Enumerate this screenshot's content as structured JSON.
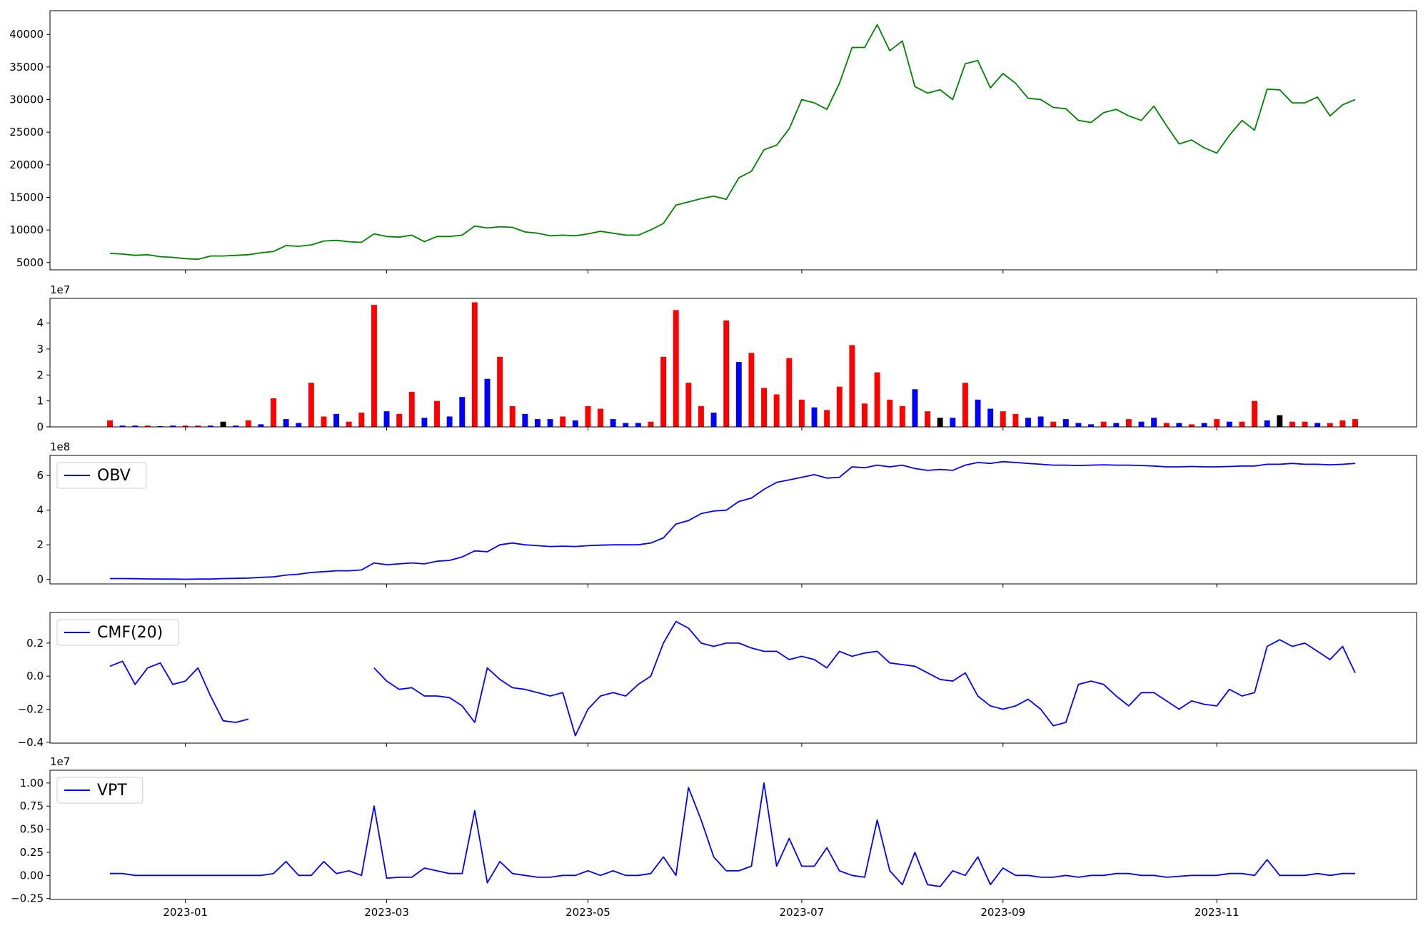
{
  "chart_data": [
    {
      "type": "line",
      "color": "#008000",
      "values": [
        6400,
        6300,
        6100,
        6200,
        5900,
        5800,
        5600,
        5500,
        6000,
        6000,
        6100,
        6200,
        6500,
        6700,
        7600,
        7500,
        7700,
        8300,
        8400,
        8200,
        8100,
        9400,
        9000,
        8900,
        9200,
        8200,
        9000,
        9000,
        9200,
        10600,
        10300,
        10500,
        10400,
        9700,
        9500,
        9100,
        9200,
        9100,
        9400,
        9800,
        9500,
        9200,
        9200,
        10000,
        11000,
        13800,
        14300,
        14800,
        15200,
        14700,
        18000,
        19000,
        22300,
        23000,
        25500,
        30000,
        29500,
        28500,
        32500,
        38000,
        38000,
        41500,
        37500,
        39000,
        32000,
        31000,
        31500,
        30000,
        35500,
        36000,
        31800,
        34000,
        32500,
        30200,
        30000,
        28800,
        28600,
        26800,
        26500,
        28000,
        28500,
        27500,
        26800,
        29000,
        26000,
        23200,
        23800,
        22600,
        21800,
        24500,
        26800,
        25300,
        31600,
        31500,
        29500,
        29500,
        30400,
        27500,
        29200,
        30000
      ],
      "ylim": [
        3880,
        43640
      ],
      "yticks": [
        5000,
        10000,
        15000,
        20000,
        25000,
        30000,
        35000,
        40000
      ]
    },
    {
      "type": "bar",
      "offset_label": "1e7",
      "values": [
        0.25,
        0.05,
        0.05,
        0.05,
        0.03,
        0.05,
        0.05,
        0.05,
        0.05,
        0.2,
        0.05,
        0.25,
        0.1,
        1.1,
        0.3,
        0.15,
        1.7,
        0.4,
        0.5,
        0.2,
        0.55,
        4.7,
        0.6,
        0.5,
        1.35,
        0.35,
        1.0,
        0.4,
        1.15,
        4.8,
        1.85,
        2.7,
        0.8,
        0.5,
        0.3,
        0.3,
        0.4,
        0.25,
        0.8,
        0.7,
        0.3,
        0.15,
        0.15,
        0.2,
        2.7,
        4.5,
        1.7,
        0.8,
        0.55,
        4.1,
        2.5,
        2.85,
        1.5,
        1.25,
        2.65,
        1.05,
        0.75,
        0.65,
        1.55,
        3.15,
        0.9,
        2.1,
        1.05,
        0.8,
        1.45,
        0.6,
        0.35,
        0.35,
        1.7,
        1.05,
        0.7,
        0.6,
        0.5,
        0.35,
        0.4,
        0.2,
        0.3,
        0.15,
        0.1,
        0.2,
        0.15,
        0.3,
        0.2,
        0.35,
        0.15,
        0.15,
        0.1,
        0.15,
        0.3,
        0.2,
        0.2,
        1.0,
        0.25,
        0.45,
        0.2,
        0.2,
        0.15,
        0.15,
        0.25,
        0.3
      ],
      "colors": [
        "red",
        "blue",
        "blue",
        "red",
        "blue",
        "blue",
        "red",
        "red",
        "blue",
        "black",
        "blue",
        "red",
        "blue",
        "red",
        "blue",
        "blue",
        "red",
        "red",
        "blue",
        "red",
        "red",
        "red",
        "blue",
        "red",
        "red",
        "blue",
        "red",
        "blue",
        "blue",
        "red",
        "blue",
        "red",
        "red",
        "blue",
        "blue",
        "blue",
        "red",
        "blue",
        "red",
        "red",
        "blue",
        "blue",
        "blue",
        "red",
        "red",
        "red",
        "red",
        "red",
        "blue",
        "red",
        "blue",
        "red",
        "red",
        "red",
        "red",
        "red",
        "blue",
        "red",
        "red",
        "red",
        "red",
        "red",
        "red",
        "red",
        "blue",
        "red",
        "black",
        "blue",
        "red",
        "blue",
        "blue",
        "red",
        "red",
        "blue",
        "blue",
        "red",
        "blue",
        "blue",
        "blue",
        "red",
        "blue",
        "red",
        "blue",
        "blue",
        "red",
        "blue",
        "red",
        "blue",
        "red",
        "blue",
        "red",
        "red",
        "blue",
        "black",
        "red",
        "red",
        "blue",
        "red",
        "red",
        "red"
      ],
      "ylim": [
        0,
        4.95
      ],
      "yticks": [
        0,
        1,
        2,
        3,
        4
      ]
    },
    {
      "type": "line",
      "offset_label": "1e8",
      "legend": "upper left",
      "series": [
        {
          "name": "OBV",
          "color": "#0000ff",
          "values": [
            0.05,
            0.05,
            0.04,
            0.03,
            0.02,
            0.02,
            0.01,
            0.02,
            0.02,
            0.05,
            0.06,
            0.08,
            0.12,
            0.15,
            0.25,
            0.3,
            0.4,
            0.45,
            0.5,
            0.5,
            0.55,
            0.95,
            0.85,
            0.9,
            0.95,
            0.9,
            1.05,
            1.1,
            1.3,
            1.65,
            1.6,
            2.0,
            2.1,
            2.0,
            1.95,
            1.9,
            1.92,
            1.9,
            1.95,
            1.98,
            2.0,
            2.0,
            2.0,
            2.1,
            2.4,
            3.2,
            3.4,
            3.8,
            3.95,
            4.0,
            4.5,
            4.7,
            5.2,
            5.6,
            5.75,
            5.9,
            6.05,
            5.85,
            5.9,
            6.5,
            6.45,
            6.6,
            6.5,
            6.6,
            6.4,
            6.3,
            6.35,
            6.3,
            6.6,
            6.75,
            6.7,
            6.8,
            6.75,
            6.7,
            6.65,
            6.6,
            6.6,
            6.58,
            6.6,
            6.62,
            6.6,
            6.6,
            6.58,
            6.55,
            6.5,
            6.5,
            6.52,
            6.5,
            6.5,
            6.52,
            6.55,
            6.55,
            6.65,
            6.65,
            6.7,
            6.65,
            6.65,
            6.62,
            6.65,
            6.7
          ]
        }
      ],
      "ylim": [
        -0.26,
        7.16
      ],
      "yticks": [
        0,
        2,
        4,
        6
      ]
    },
    {
      "type": "line",
      "legend": "upper left",
      "series": [
        {
          "name": "CMF(20)",
          "color": "#0000ff",
          "values": [
            0.06,
            0.09,
            -0.05,
            0.05,
            0.08,
            -0.05,
            -0.03,
            0.05,
            -0.12,
            -0.27,
            -0.28,
            -0.26,
            null,
            null,
            null,
            null,
            null,
            null,
            null,
            null,
            null,
            0.05,
            -0.03,
            -0.08,
            -0.07,
            -0.12,
            -0.12,
            -0.13,
            -0.18,
            -0.28,
            0.05,
            -0.02,
            -0.07,
            -0.08,
            -0.1,
            -0.12,
            -0.1,
            -0.36,
            -0.2,
            -0.12,
            -0.1,
            -0.12,
            -0.05,
            0.0,
            0.2,
            0.33,
            0.29,
            0.2,
            0.18,
            0.2,
            0.2,
            0.17,
            0.15,
            0.15,
            0.1,
            0.12,
            0.1,
            0.05,
            0.15,
            0.12,
            0.14,
            0.15,
            0.08,
            0.07,
            0.06,
            0.02,
            -0.02,
            -0.03,
            0.02,
            -0.12,
            -0.18,
            -0.2,
            -0.18,
            -0.14,
            -0.2,
            -0.3,
            -0.28,
            -0.05,
            -0.03,
            -0.05,
            -0.12,
            -0.18,
            -0.1,
            -0.1,
            -0.15,
            -0.2,
            -0.15,
            -0.17,
            -0.18,
            -0.08,
            -0.12,
            -0.1,
            0.18,
            0.22,
            0.18,
            0.2,
            0.15,
            0.1,
            0.18,
            0.02
          ]
        }
      ],
      "ylim": [
        -0.405,
        0.385
      ],
      "yticks": [
        {
          "value": -0.4,
          "label": "−0.4"
        },
        {
          "value": -0.2,
          "label": "−0.2"
        },
        {
          "value": 0,
          "label": "0.0"
        },
        {
          "value": 0.2,
          "label": "0.2"
        }
      ]
    },
    {
      "type": "line",
      "offset_label": "1e7",
      "legend": "upper left",
      "series": [
        {
          "name": "VPT",
          "color": "#0000ff",
          "values": [
            0.02,
            0.02,
            0,
            0,
            0,
            0,
            0,
            0,
            0,
            0,
            0,
            0,
            0,
            0.02,
            0.15,
            0,
            0,
            0.15,
            0.02,
            0.05,
            0,
            0.75,
            -0.03,
            -0.02,
            -0.02,
            0.08,
            0.05,
            0.02,
            0.02,
            0.7,
            -0.08,
            0.15,
            0.02,
            0,
            -0.02,
            -0.02,
            0,
            0,
            0.05,
            0,
            0.05,
            0,
            0,
            0.02,
            0.2,
            0,
            0.95,
            0.6,
            0.2,
            0.05,
            0.05,
            0.1,
            1.0,
            0.1,
            0.4,
            0.1,
            0.1,
            0.3,
            0.05,
            0,
            -0.02,
            0.6,
            0.05,
            -0.1,
            0.25,
            -0.1,
            -0.12,
            0.05,
            0,
            0.2,
            -0.1,
            0.08,
            0,
            0,
            -0.02,
            -0.02,
            0,
            -0.02,
            0,
            0,
            0.02,
            0.02,
            0,
            0,
            -0.02,
            -0.01,
            0,
            0,
            0,
            0.02,
            0.02,
            0,
            0.17,
            0,
            0,
            0,
            0.02,
            0,
            0.02,
            0.02
          ]
        }
      ],
      "ylim": [
        -0.26,
        1.138
      ],
      "yticks": [
        {
          "value": -0.25,
          "label": "−0.25"
        },
        {
          "value": 0,
          "label": "0.00"
        },
        {
          "value": 0.25,
          "label": "0.25"
        },
        {
          "value": 0.5,
          "label": "0.50"
        },
        {
          "value": 0.75,
          "label": "0.75"
        },
        {
          "value": 1,
          "label": "1.00"
        }
      ],
      "categories": [
        null,
        null,
        null,
        null,
        null,
        null,
        "2023-01",
        null,
        null,
        null,
        null,
        null,
        null,
        null,
        null,
        null,
        null,
        null,
        null,
        null,
        null,
        null,
        "2023-03",
        null,
        null,
        null,
        null,
        null,
        null,
        null,
        null,
        null,
        null,
        null,
        null,
        null,
        null,
        null,
        "2023-05",
        null,
        null,
        null,
        null,
        null,
        null,
        null,
        null,
        null,
        null,
        null,
        null,
        null,
        null,
        null,
        null,
        "2023-07",
        null,
        null,
        null,
        null,
        null,
        null,
        null,
        null,
        null,
        null,
        null,
        null,
        null,
        null,
        null,
        "2023-09",
        null,
        null,
        null,
        null,
        null,
        null,
        null,
        null,
        null,
        null,
        null,
        null,
        null,
        null,
        null,
        null,
        "2023-11",
        null,
        null,
        null,
        null,
        null,
        null,
        null,
        null,
        null,
        null,
        null
      ]
    }
  ]
}
